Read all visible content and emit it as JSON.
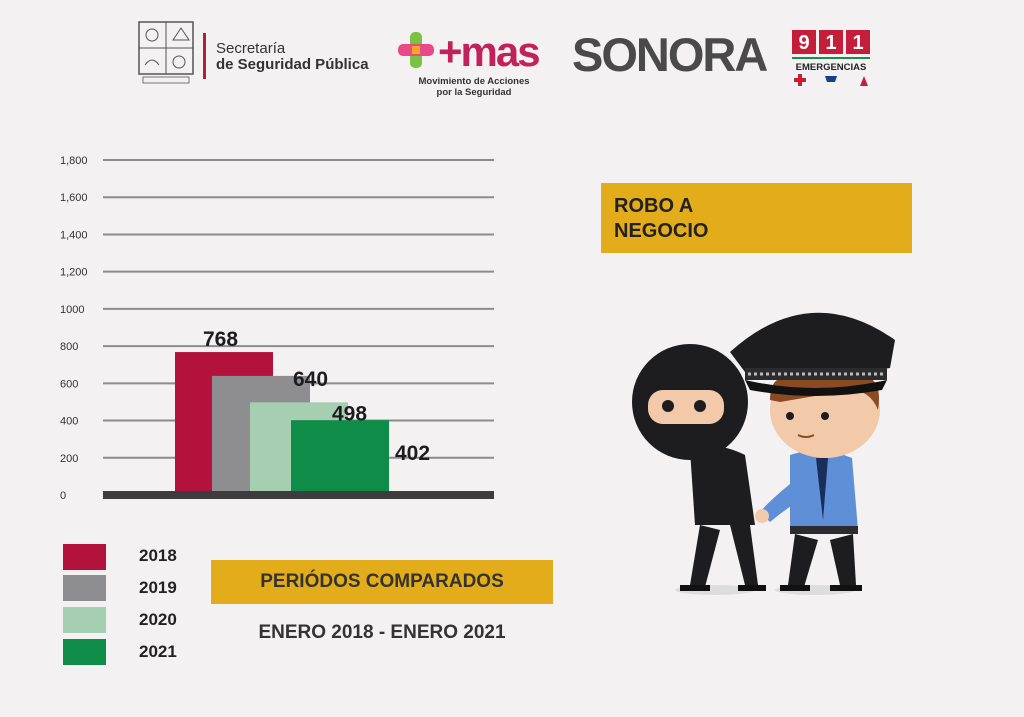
{
  "header": {
    "secretaria_line1": "Secretaría",
    "secretaria_line2": "de Seguridad Pública",
    "seal_icon": "state-seal-icon",
    "mas_logo_text": "+mas",
    "mas_subtitle_line1": "Movimiento de Acciones",
    "mas_subtitle_line2": "por la Seguridad",
    "sonora_text": "SONORA",
    "e911_number": "911",
    "e911_label": "EMERGENCIAS"
  },
  "title": {
    "line1": "ROBO A",
    "line2": "NEGOCIO"
  },
  "periods": {
    "label": "PERIÓDOS COMPARADOS",
    "range": "ENERO 2018 - ENERO 2021"
  },
  "chart_data": {
    "type": "bar",
    "categories": [
      "2018",
      "2019",
      "2020",
      "2021"
    ],
    "values": [
      768,
      640,
      498,
      402
    ],
    "yticks": [
      "0",
      "200",
      "400",
      "600",
      "800",
      "1000",
      "1,200",
      "1,400",
      "1,600",
      "1,800"
    ],
    "ylim": [
      0,
      1800
    ],
    "grid": true,
    "legend_position": "bottom-left",
    "colors": [
      "#b3123d",
      "#8e8d8f",
      "#a6ceb1",
      "#0e8c48"
    ]
  },
  "colors": {
    "accent_yellow": "#e2ac1a",
    "background": "#f3f1f1",
    "axis": "#3d3d3f"
  },
  "illustration": {
    "icon": "police-arresting-thief-icon"
  }
}
